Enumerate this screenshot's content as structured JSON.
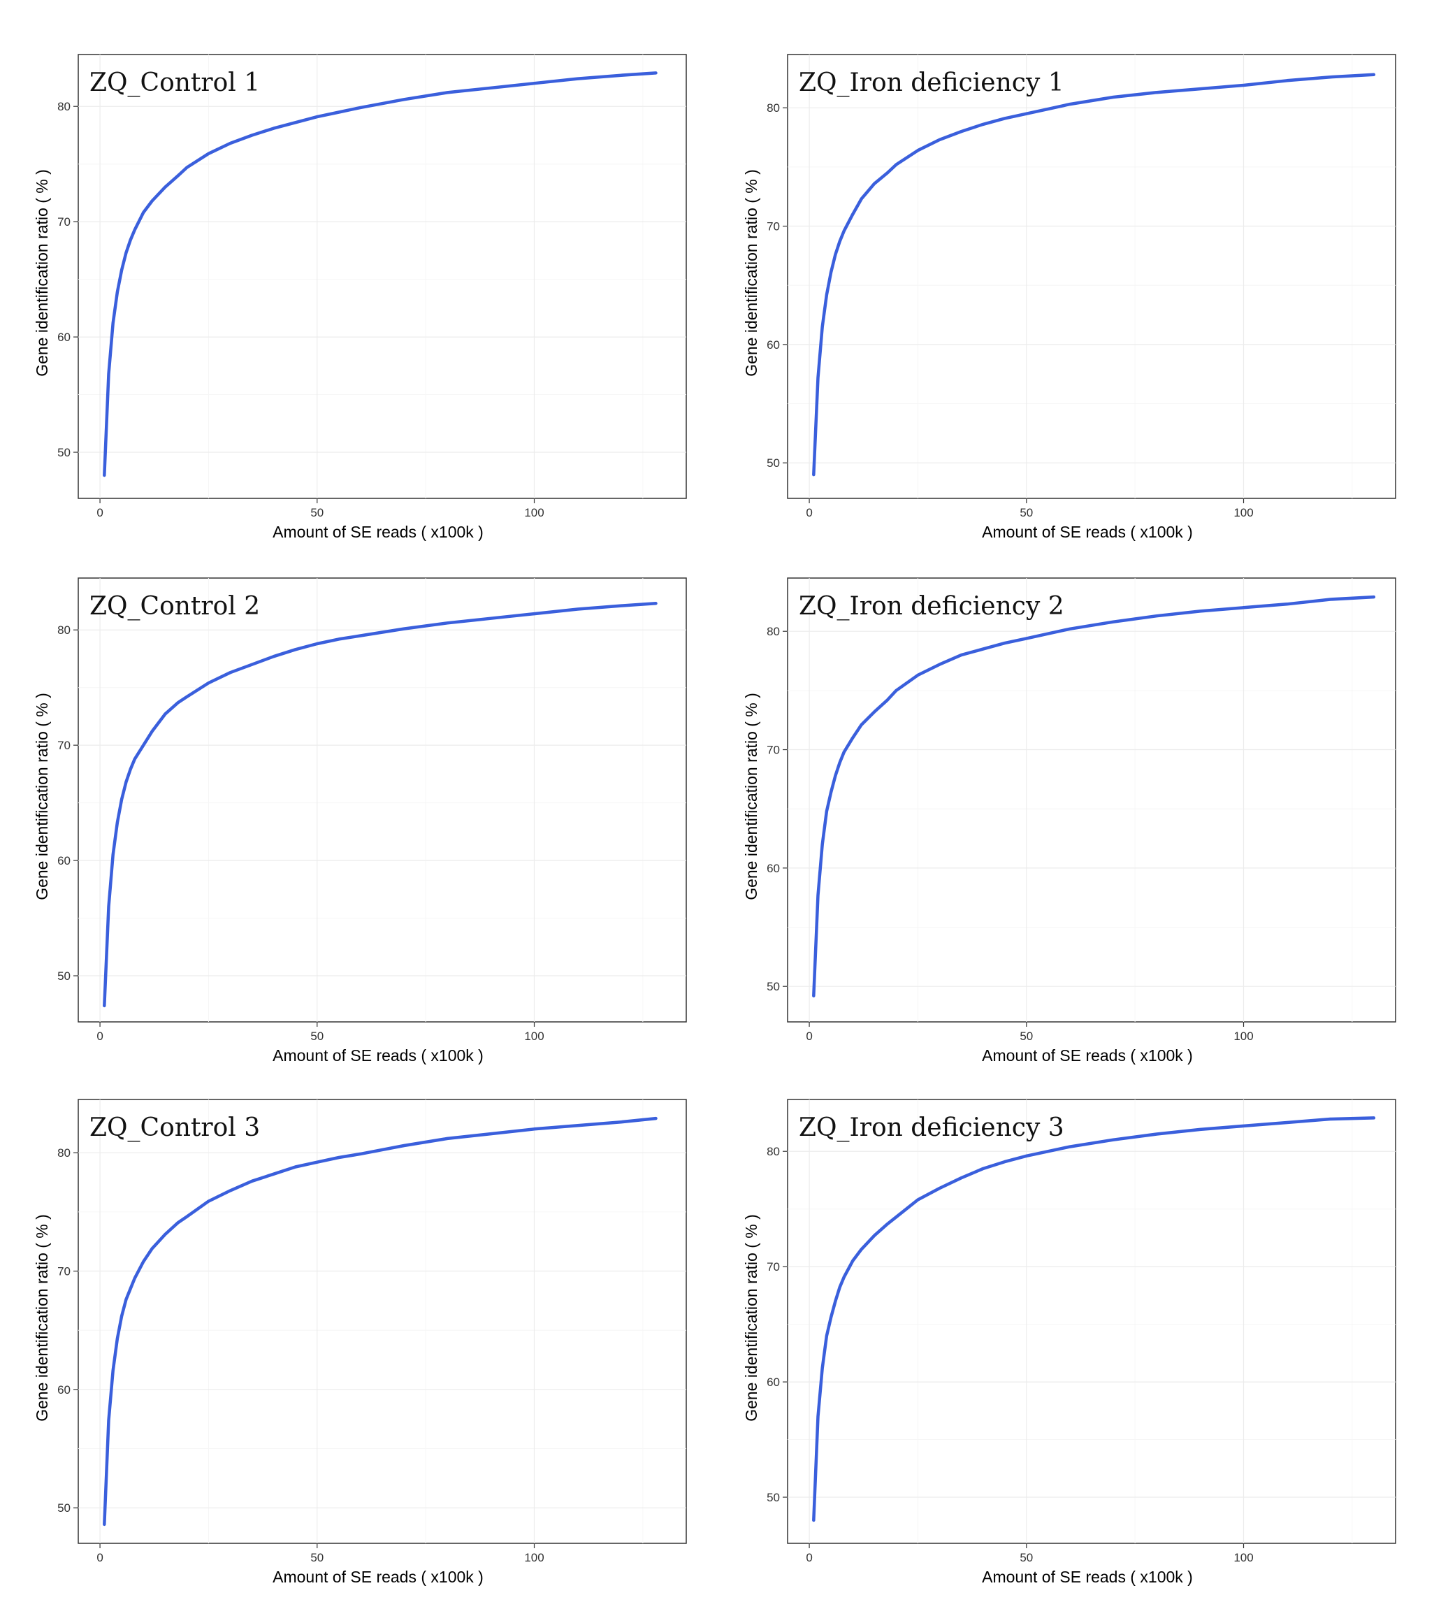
{
  "style": {
    "line_color": "#3a5fdc",
    "frame_color": "#333333",
    "grid_color": "#ececec"
  },
  "chart_data": [
    {
      "type": "line",
      "title": "ZQ_Control 1",
      "xlabel": "Amount of SE reads ( x100k )",
      "ylabel": "Gene identification ratio ( % )",
      "xlim": [
        -5,
        135
      ],
      "ylim": [
        46,
        84.5
      ],
      "xticks": [
        0,
        50,
        100
      ],
      "yticks": [
        50,
        60,
        70,
        80
      ],
      "grid": true,
      "x": [
        1,
        2,
        3,
        4,
        5,
        6,
        7,
        8,
        10,
        12,
        15,
        18,
        20,
        25,
        30,
        35,
        40,
        45,
        50,
        55,
        60,
        70,
        80,
        90,
        100,
        110,
        120,
        128
      ],
      "y": [
        48.0,
        56.8,
        61.2,
        63.9,
        65.8,
        67.3,
        68.4,
        69.3,
        70.8,
        71.8,
        73.0,
        74.0,
        74.7,
        75.9,
        76.8,
        77.5,
        78.1,
        78.6,
        79.1,
        79.5,
        79.9,
        80.6,
        81.2,
        81.6,
        82.0,
        82.4,
        82.7,
        82.9
      ]
    },
    {
      "type": "line",
      "title": "ZQ_Iron deficiency 1",
      "xlabel": "Amount of SE reads ( x100k )",
      "ylabel": "Gene identification ratio ( % )",
      "xlim": [
        -5,
        135
      ],
      "ylim": [
        47,
        84.5
      ],
      "xticks": [
        0,
        50,
        100
      ],
      "yticks": [
        50,
        60,
        70,
        80
      ],
      "grid": true,
      "x": [
        1,
        2,
        3,
        4,
        5,
        6,
        7,
        8,
        10,
        12,
        15,
        18,
        20,
        25,
        30,
        35,
        40,
        45,
        50,
        55,
        60,
        70,
        80,
        90,
        100,
        110,
        120,
        130
      ],
      "y": [
        49.0,
        57.2,
        61.5,
        64.2,
        66.1,
        67.6,
        68.7,
        69.6,
        71.0,
        72.3,
        73.6,
        74.5,
        75.2,
        76.4,
        77.3,
        78.0,
        78.6,
        79.1,
        79.5,
        79.9,
        80.3,
        80.9,
        81.3,
        81.6,
        81.9,
        82.3,
        82.6,
        82.8
      ]
    },
    {
      "type": "line",
      "title": "ZQ_Control 2",
      "xlabel": "Amount of SE reads ( x100k )",
      "ylabel": "Gene identification ratio ( % )",
      "xlim": [
        -5,
        135
      ],
      "ylim": [
        46,
        84.5
      ],
      "xticks": [
        0,
        50,
        100
      ],
      "yticks": [
        50,
        60,
        70,
        80
      ],
      "grid": true,
      "x": [
        1,
        2,
        3,
        4,
        5,
        6,
        7,
        8,
        10,
        12,
        15,
        18,
        20,
        25,
        30,
        35,
        40,
        45,
        50,
        55,
        60,
        70,
        80,
        90,
        100,
        110,
        120,
        128
      ],
      "y": [
        47.4,
        56.0,
        60.5,
        63.3,
        65.3,
        66.8,
        67.9,
        68.8,
        70.0,
        71.2,
        72.7,
        73.7,
        74.2,
        75.4,
        76.3,
        77.0,
        77.7,
        78.3,
        78.8,
        79.2,
        79.5,
        80.1,
        80.6,
        81.0,
        81.4,
        81.8,
        82.1,
        82.3
      ]
    },
    {
      "type": "line",
      "title": "ZQ_Iron deficiency 2",
      "xlabel": "Amount of SE reads ( x100k )",
      "ylabel": "Gene identification ratio ( % )",
      "xlim": [
        -5,
        135
      ],
      "ylim": [
        47,
        84.5
      ],
      "xticks": [
        0,
        50,
        100
      ],
      "yticks": [
        50,
        60,
        70,
        80
      ],
      "grid": true,
      "x": [
        1,
        2,
        3,
        4,
        5,
        6,
        7,
        8,
        10,
        12,
        15,
        18,
        20,
        25,
        30,
        35,
        40,
        45,
        50,
        55,
        60,
        70,
        80,
        90,
        100,
        110,
        120,
        130
      ],
      "y": [
        49.2,
        57.7,
        62.0,
        64.8,
        66.4,
        67.8,
        68.9,
        69.8,
        71.0,
        72.1,
        73.2,
        74.2,
        75.0,
        76.3,
        77.2,
        78.0,
        78.5,
        79.0,
        79.4,
        79.8,
        80.2,
        80.8,
        81.3,
        81.7,
        82.0,
        82.3,
        82.7,
        82.9
      ]
    },
    {
      "type": "line",
      "title": "ZQ_Control 3",
      "xlabel": "Amount of SE reads ( x100k )",
      "ylabel": "Gene identification ratio ( % )",
      "xlim": [
        -5,
        135
      ],
      "ylim": [
        47,
        84.5
      ],
      "xticks": [
        0,
        50,
        100
      ],
      "yticks": [
        50,
        60,
        70,
        80
      ],
      "grid": true,
      "x": [
        1,
        2,
        3,
        4,
        5,
        6,
        7,
        8,
        10,
        12,
        15,
        18,
        20,
        25,
        30,
        35,
        40,
        45,
        50,
        55,
        60,
        70,
        80,
        90,
        100,
        110,
        120,
        128
      ],
      "y": [
        48.6,
        57.4,
        61.6,
        64.3,
        66.2,
        67.6,
        68.5,
        69.4,
        70.8,
        71.9,
        73.1,
        74.1,
        74.6,
        75.9,
        76.8,
        77.6,
        78.2,
        78.8,
        79.2,
        79.6,
        79.9,
        80.6,
        81.2,
        81.6,
        82.0,
        82.3,
        82.6,
        82.9
      ]
    },
    {
      "type": "line",
      "title": "ZQ_Iron deficiency 3",
      "xlabel": "Amount of SE reads ( x100k )",
      "ylabel": "Gene identification ratio ( % )",
      "xlim": [
        -5,
        135
      ],
      "ylim": [
        46,
        84.5
      ],
      "xticks": [
        0,
        50,
        100
      ],
      "yticks": [
        50,
        60,
        70,
        80
      ],
      "grid": true,
      "x": [
        1,
        2,
        3,
        4,
        5,
        6,
        7,
        8,
        10,
        12,
        15,
        18,
        20,
        25,
        30,
        35,
        40,
        45,
        50,
        55,
        60,
        70,
        80,
        90,
        100,
        110,
        120,
        130
      ],
      "y": [
        48.0,
        57.0,
        61.2,
        64.0,
        65.6,
        67.0,
        68.2,
        69.1,
        70.5,
        71.5,
        72.7,
        73.7,
        74.3,
        75.8,
        76.8,
        77.7,
        78.5,
        79.1,
        79.6,
        80.0,
        80.4,
        81.0,
        81.5,
        81.9,
        82.2,
        82.5,
        82.8,
        82.9
      ]
    }
  ]
}
